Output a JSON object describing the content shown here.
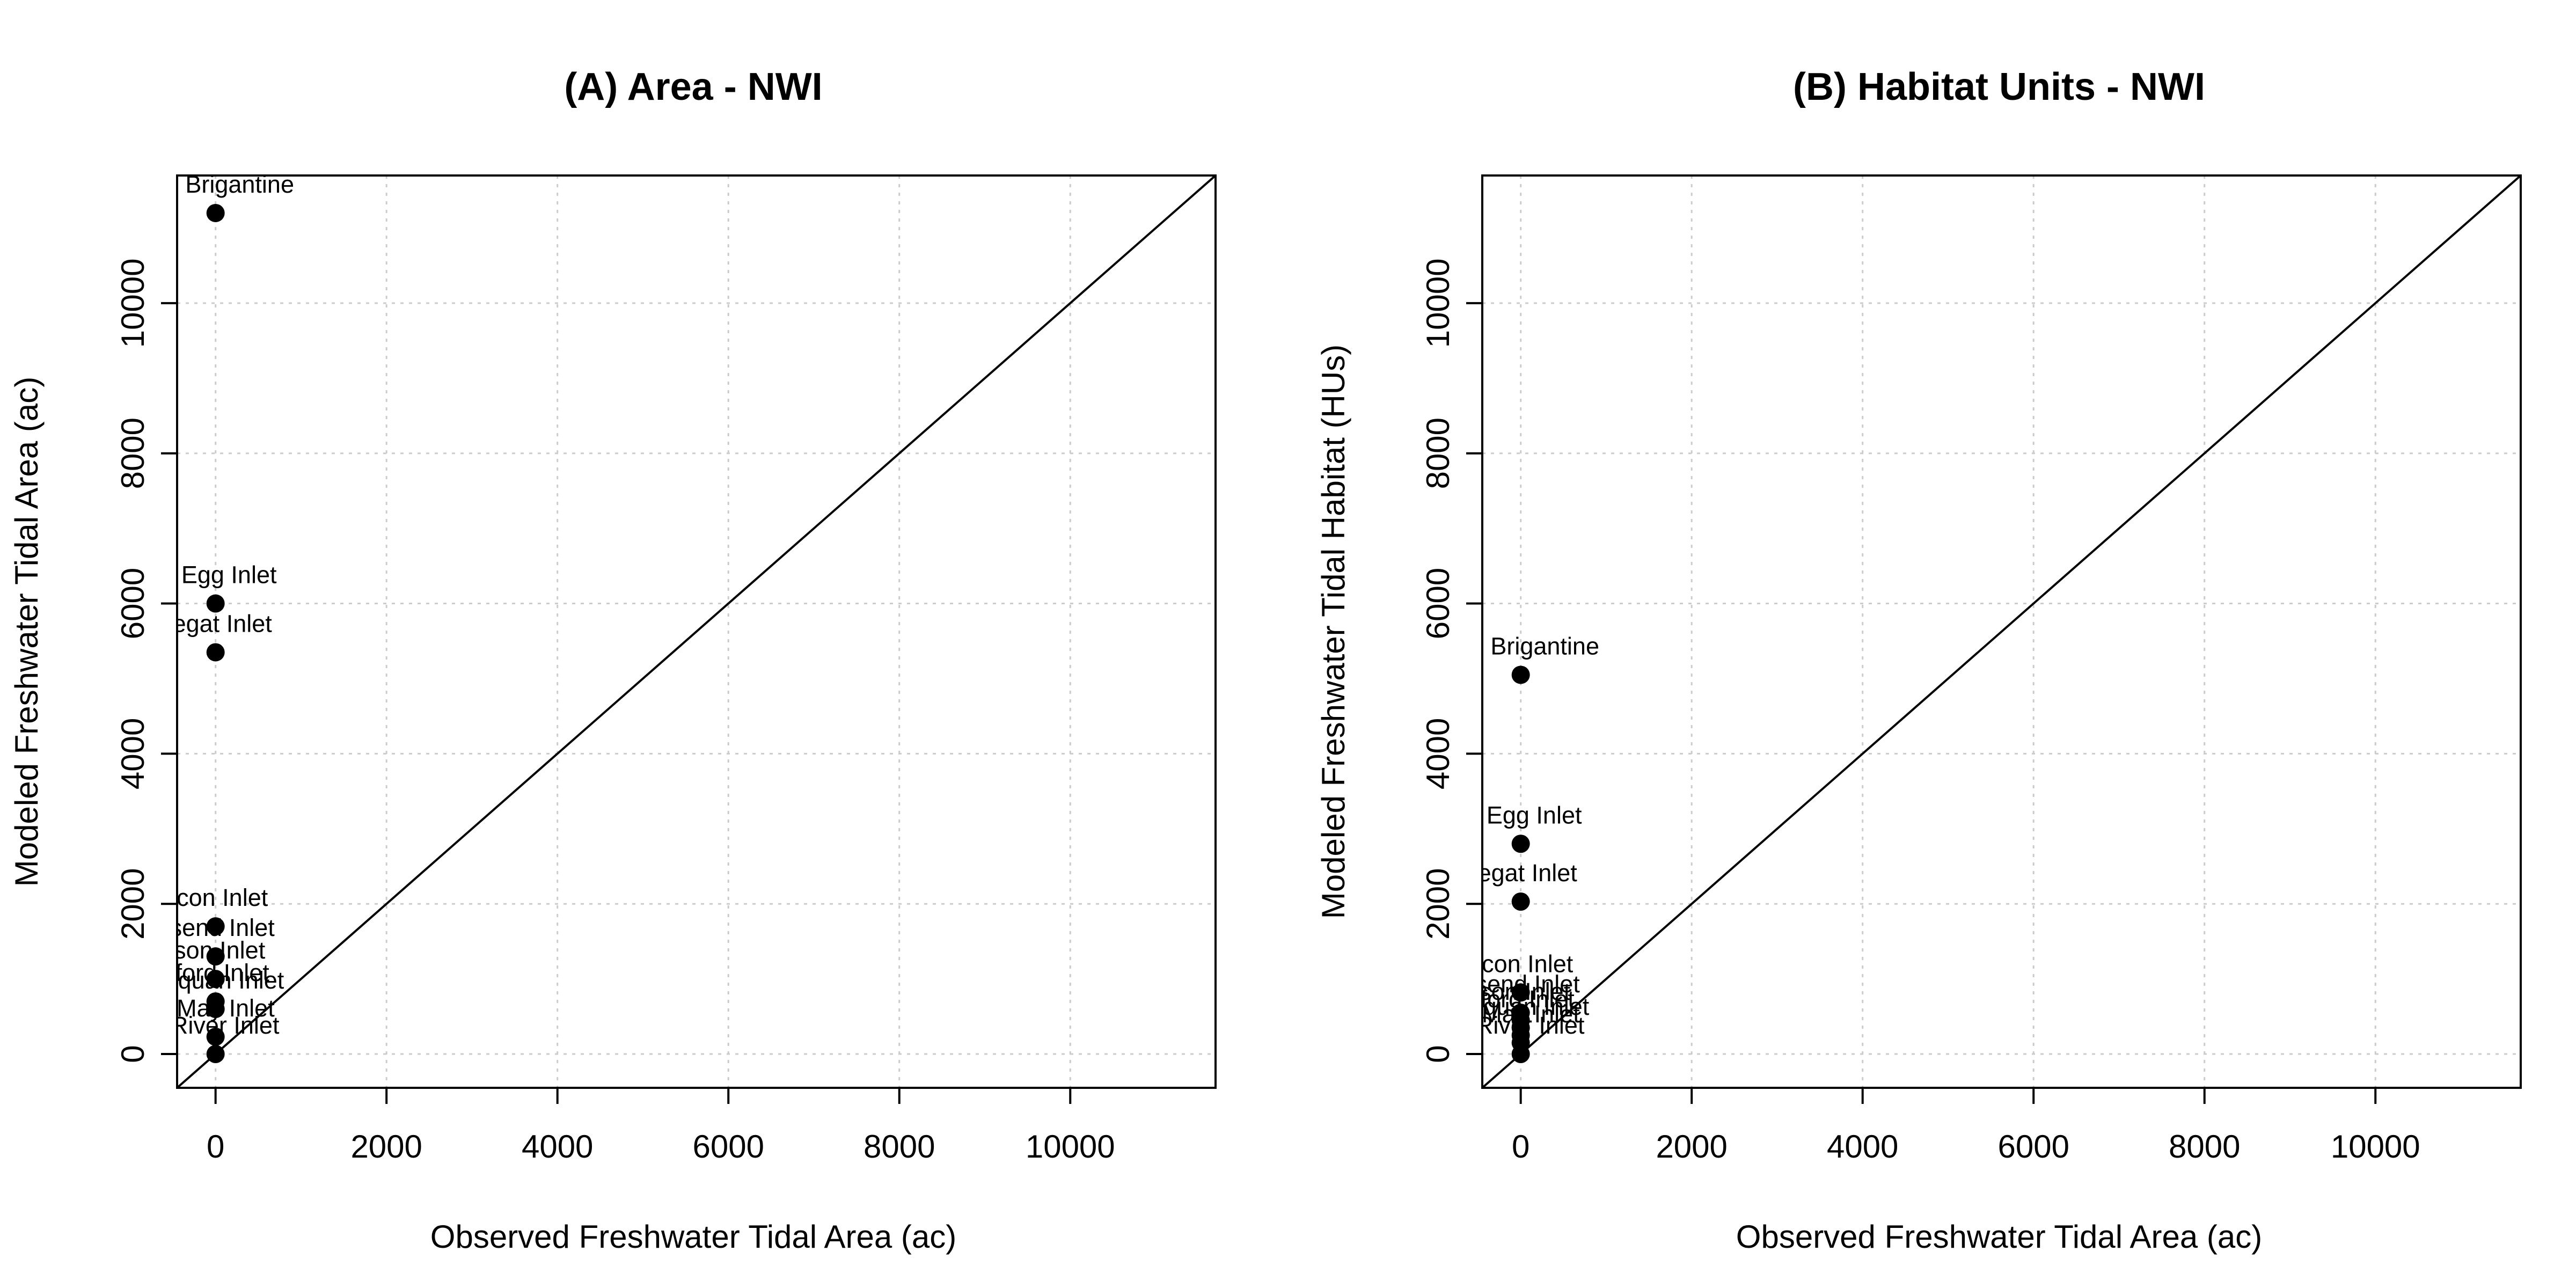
{
  "figure": {
    "colors": {
      "background": "#ffffff",
      "points": "#000000",
      "grid": "#cccccc",
      "line": "#000000"
    }
  },
  "chart_data": [
    {
      "type": "scatter",
      "title": "(A) Area - NWI",
      "xlabel": "Observed Freshwater Tidal Area (ac)",
      "ylabel": "Modeled Freshwater Tidal Area (ac)",
      "xlim": [
        -450,
        11700
      ],
      "ylim": [
        -450,
        11700
      ],
      "xticks": [
        "0",
        "2000",
        "4000",
        "6000",
        "8000",
        "10000"
      ],
      "yticks": [
        "0",
        "2000",
        "4000",
        "6000",
        "8000",
        "10000"
      ],
      "grid": true,
      "reference_line": "y = x",
      "points": [
        {
          "label": "gg - Brigantine",
          "x": 0,
          "y": 11200
        },
        {
          "label": "at Egg Inlet",
          "x": 0,
          "y": 6000
        },
        {
          "label": "negat Inlet",
          "x": 0,
          "y": 5350
        },
        {
          "label": "econ Inlet",
          "x": 0,
          "y": 1700
        },
        {
          "label": "nsend Inlet",
          "x": 0,
          "y": 1300
        },
        {
          "label": "rson Inlet",
          "x": 0,
          "y": 1000
        },
        {
          "label": "eford Inlet",
          "x": 0,
          "y": 700
        },
        {
          "label": "nisquan Inlet",
          "x": 0,
          "y": 600
        },
        {
          "label": "e May Inlet",
          "x": 0,
          "y": 230
        },
        {
          "label": "k River Inlet",
          "x": 0,
          "y": 0
        }
      ]
    },
    {
      "type": "scatter",
      "title": "(B) Habitat Units - NWI",
      "xlabel": "Observed Freshwater Tidal Area (ac)",
      "ylabel": "Modeled Freshwater Tidal Habitat (HUs)",
      "xlim": [
        -450,
        11700
      ],
      "ylim": [
        -450,
        11700
      ],
      "xticks": [
        "0",
        "2000",
        "4000",
        "6000",
        "8000",
        "10000"
      ],
      "yticks": [
        "0",
        "2000",
        "4000",
        "6000",
        "8000",
        "10000"
      ],
      "grid": true,
      "reference_line": "y = x",
      "points": [
        {
          "label": "gg - Brigantine",
          "x": 0,
          "y": 5050
        },
        {
          "label": "at Egg Inlet",
          "x": 0,
          "y": 2800
        },
        {
          "label": "negat Inlet",
          "x": 0,
          "y": 2030
        },
        {
          "label": "econ Inlet",
          "x": 0,
          "y": 820
        },
        {
          "label": "nsend Inlet",
          "x": 0,
          "y": 550
        },
        {
          "label": "rson Inlet",
          "x": 0,
          "y": 450
        },
        {
          "label": "eford Inlet",
          "x": 0,
          "y": 350
        },
        {
          "label": "nisquan Inlet",
          "x": 0,
          "y": 250
        },
        {
          "label": "e May Inlet",
          "x": 0,
          "y": 150
        },
        {
          "label": "k River Inlet",
          "x": 0,
          "y": 0
        }
      ]
    }
  ]
}
